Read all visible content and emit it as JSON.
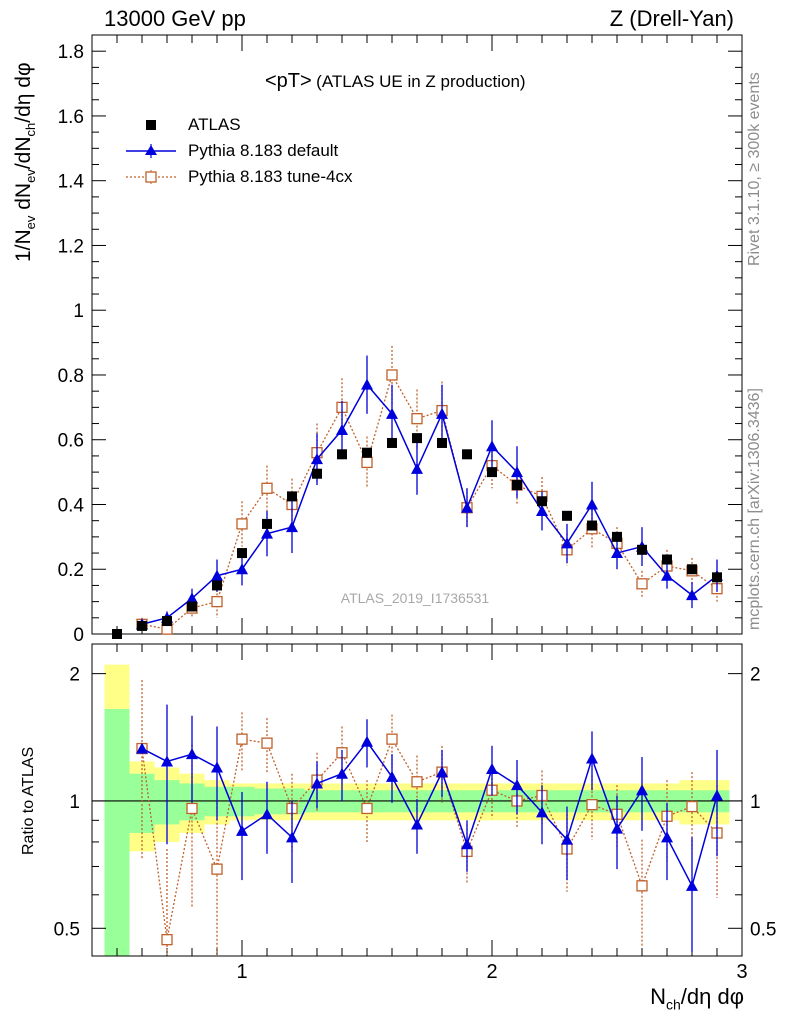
{
  "header": {
    "left": "13000 GeV pp",
    "right": "Z (Drell-Yan)"
  },
  "plot_title": {
    "main": "<pT>",
    "detail": "(ATLAS UE in Z production)"
  },
  "watermark": "ATLAS_2019_I1736531",
  "side_labels": {
    "top": "Rivet 3.1.10, ≥ 300k events",
    "bottom": "mcplots.cern.ch [arXiv:1306.3436]"
  },
  "legend": [
    {
      "label": "ATLAS"
    },
    {
      "label": "Pythia 8.183 default"
    },
    {
      "label": "Pythia 8.183 tune-4cx"
    }
  ],
  "colors": {
    "data": "#000000",
    "default": "#0000dd",
    "tune": "#c0602a",
    "band_inner": "#99ff99",
    "band_outer": "#ffff88"
  },
  "axis_labels": {
    "ylabel_top": "1/N_ev dN_ev/dN_ch/dη dφ",
    "ylabel_ratio": "Ratio to ATLAS",
    "xlabel": "N_ch/dη dφ"
  },
  "ticks": {
    "main_y": [
      "0",
      "0.2",
      "0.4",
      "0.6",
      "0.8",
      "1",
      "1.2",
      "1.4",
      "1.6",
      "1.8"
    ],
    "ratio_y": [
      "0.5",
      "1",
      "2"
    ],
    "x": [
      "1",
      "2",
      "3"
    ]
  },
  "chart_data": {
    "type": "scatter",
    "x": [
      0.5,
      0.6,
      0.7,
      0.8,
      0.9,
      1.0,
      1.1,
      1.2,
      1.3,
      1.4,
      1.5,
      1.6,
      1.7,
      1.8,
      1.9,
      2.0,
      2.1,
      2.2,
      2.3,
      2.4,
      2.5,
      2.6,
      2.7,
      2.8,
      2.9
    ],
    "xlim": [
      0.4,
      3.0
    ],
    "ylim": [
      0,
      1.85
    ],
    "ratio_ylim": [
      0.43,
      2.35
    ],
    "series": [
      {
        "name": "ATLAS",
        "values": [
          0.0,
          0.025,
          0.04,
          0.085,
          0.15,
          0.25,
          0.34,
          0.425,
          0.495,
          0.555,
          0.56,
          0.59,
          0.605,
          0.59,
          0.555,
          0.5,
          0.46,
          0.41,
          0.365,
          0.335,
          0.3,
          0.26,
          0.23,
          0.2,
          0.175
        ]
      },
      {
        "name": "Pythia 8.183 default",
        "values": [
          null,
          0.03,
          0.05,
          0.11,
          0.18,
          0.2,
          0.31,
          0.33,
          0.54,
          0.63,
          0.77,
          0.68,
          0.51,
          0.68,
          0.39,
          0.58,
          0.5,
          0.38,
          0.28,
          0.4,
          0.25,
          0.27,
          0.18,
          0.12,
          0.18
        ],
        "errors": [
          null,
          0.01,
          0.02,
          0.03,
          0.05,
          0.05,
          0.07,
          0.08,
          0.08,
          0.09,
          0.09,
          0.09,
          0.08,
          0.09,
          0.06,
          0.08,
          0.08,
          0.06,
          0.06,
          0.07,
          0.05,
          0.06,
          0.04,
          0.04,
          0.05
        ]
      },
      {
        "name": "Pythia 8.183 tune-4cx",
        "values": [
          null,
          0.03,
          0.015,
          0.08,
          0.1,
          0.34,
          0.45,
          0.4,
          0.56,
          0.7,
          0.53,
          0.8,
          0.665,
          0.69,
          0.39,
          0.52,
          0.46,
          0.425,
          0.26,
          0.325,
          0.28,
          0.155,
          0.21,
          0.195,
          0.14
        ],
        "errors": [
          null,
          0.02,
          0.02,
          0.03,
          0.05,
          0.07,
          0.07,
          0.08,
          0.09,
          0.09,
          0.08,
          0.09,
          0.09,
          0.09,
          0.06,
          0.07,
          0.06,
          0.06,
          0.05,
          0.06,
          0.05,
          0.04,
          0.05,
          0.04,
          0.04
        ]
      }
    ],
    "ratio": {
      "default": [
        null,
        1.33,
        1.24,
        1.29,
        1.2,
        0.85,
        0.93,
        0.82,
        1.1,
        1.16,
        1.38,
        1.14,
        0.88,
        1.17,
        0.79,
        1.19,
        1.09,
        0.94,
        0.81,
        1.26,
        0.86,
        1.06,
        0.82,
        0.63,
        1.03
      ],
      "default_err": [
        null,
        null,
        0.45,
        0.3,
        0.3,
        0.2,
        0.18,
        0.18,
        0.14,
        0.16,
        0.18,
        0.15,
        0.13,
        0.15,
        0.11,
        0.16,
        0.16,
        0.15,
        0.16,
        0.2,
        0.17,
        0.21,
        0.17,
        0.19,
        0.29
      ],
      "tune": [
        null,
        1.33,
        0.47,
        0.96,
        0.69,
        1.4,
        1.37,
        0.96,
        1.12,
        1.3,
        0.96,
        1.4,
        1.11,
        1.17,
        0.76,
        1.06,
        1.0,
        1.03,
        0.77,
        0.98,
        0.93,
        0.63,
        0.92,
        0.97,
        0.84
      ],
      "tune_err": [
        null,
        0.6,
        0.3,
        0.4,
        0.3,
        0.22,
        0.2,
        0.2,
        0.18,
        0.2,
        0.16,
        0.2,
        0.17,
        0.18,
        0.12,
        0.15,
        0.14,
        0.15,
        0.16,
        0.17,
        0.16,
        0.18,
        0.2,
        0.2,
        0.25
      ],
      "band_inner": [
        0.65,
        0.16,
        0.12,
        0.1,
        0.08,
        0.08,
        0.07,
        0.07,
        0.06,
        0.06,
        0.06,
        0.06,
        0.06,
        0.06,
        0.06,
        0.06,
        0.06,
        0.06,
        0.06,
        0.06,
        0.06,
        0.06,
        0.06,
        0.06,
        0.06
      ],
      "band_outer": [
        1.1,
        0.24,
        0.2,
        0.16,
        0.12,
        0.1,
        0.1,
        0.1,
        0.1,
        0.1,
        0.1,
        0.1,
        0.1,
        0.1,
        0.1,
        0.1,
        0.1,
        0.1,
        0.1,
        0.1,
        0.1,
        0.1,
        0.1,
        0.12,
        0.12
      ]
    }
  }
}
